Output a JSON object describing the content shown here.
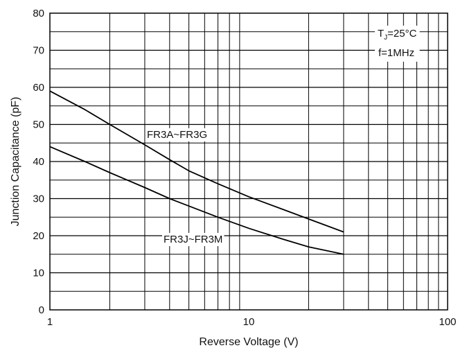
{
  "chart_data": {
    "type": "line",
    "title": "",
    "xlabel": "Reverse Voltage (V)",
    "ylabel": "Junction Capacitance (pF)",
    "x_scale": "log",
    "xlim": [
      1,
      100
    ],
    "ylim": [
      0,
      80
    ],
    "grid": true,
    "x_ticks": [
      "1",
      "10",
      "100"
    ],
    "y_ticks": [
      "0",
      "10",
      "20",
      "30",
      "40",
      "50",
      "60",
      "70",
      "80"
    ],
    "annotations": {
      "temperature": {
        "prefix": "T",
        "subscript": "J",
        "suffix": "=25°C"
      },
      "frequency": "f=1MHz"
    },
    "series": [
      {
        "name": "FR3A~FR3G",
        "color": "#000000",
        "x": [
          1,
          1.5,
          2,
          3,
          4,
          5,
          7,
          10,
          15,
          20,
          30
        ],
        "y": [
          59,
          54,
          50,
          44.5,
          40.5,
          37.5,
          34,
          30.5,
          27,
          24.5,
          21
        ]
      },
      {
        "name": "FR3J~FR3M",
        "color": "#000000",
        "x": [
          1,
          1.5,
          2,
          3,
          4,
          5,
          7,
          10,
          15,
          20,
          30
        ],
        "y": [
          44,
          40,
          37,
          33,
          30,
          28,
          25,
          22,
          19,
          17,
          15
        ]
      }
    ]
  }
}
